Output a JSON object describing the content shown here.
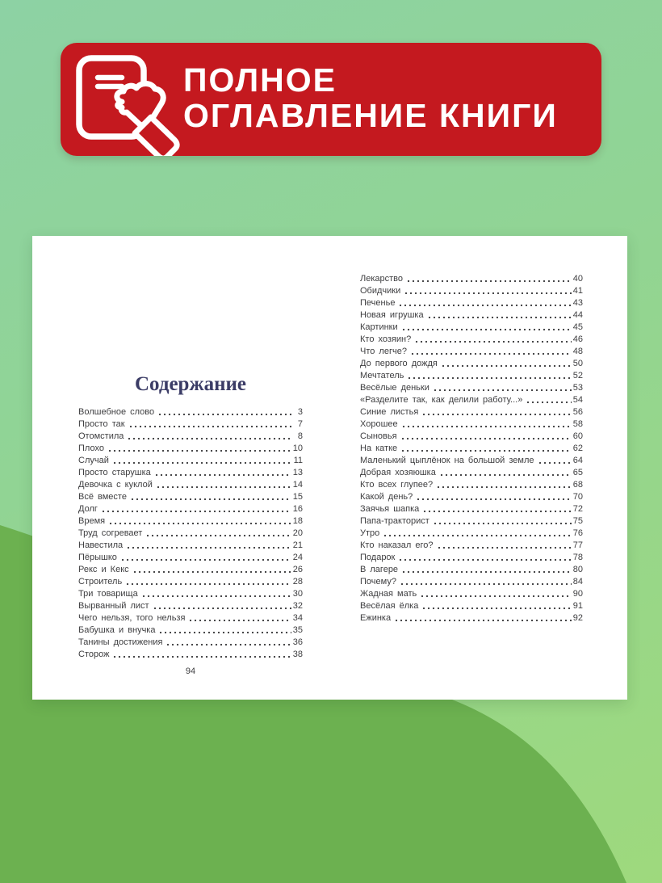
{
  "banner": {
    "line1": "ПОЛНОЕ",
    "line2": "ОГЛАВЛЕНИЕ КНИГИ",
    "background_color": "#c4191f",
    "text_color": "#ffffff",
    "icon": "book-with-writing-hand"
  },
  "book_spread": {
    "title": "Содержание",
    "title_color": "#3b3c66",
    "page_number": "94",
    "toc_left": [
      {
        "title": "Волшебное слово",
        "page": "3"
      },
      {
        "title": "Просто так",
        "page": "7"
      },
      {
        "title": "Отомстила",
        "page": "8"
      },
      {
        "title": "Плохо",
        "page": "10"
      },
      {
        "title": "Случай",
        "page": "11"
      },
      {
        "title": "Просто старушка",
        "page": "13"
      },
      {
        "title": "Девочка с куклой",
        "page": "14"
      },
      {
        "title": "Всё вместе",
        "page": "15"
      },
      {
        "title": "Долг",
        "page": "16"
      },
      {
        "title": "Время",
        "page": "18"
      },
      {
        "title": "Труд согревает",
        "page": "20"
      },
      {
        "title": "Навестила",
        "page": "21"
      },
      {
        "title": "Пёрышко",
        "page": "24"
      },
      {
        "title": "Рекс и Кекс",
        "page": "26"
      },
      {
        "title": "Строитель",
        "page": "28"
      },
      {
        "title": "Три товарища",
        "page": "30"
      },
      {
        "title": "Вырванный лист",
        "page": "32"
      },
      {
        "title": "Чего нельзя, того нельзя",
        "page": "34"
      },
      {
        "title": "Бабушка и внучка",
        "page": "35"
      },
      {
        "title": "Танины достижения",
        "page": "36"
      },
      {
        "title": "Сторож",
        "page": "38"
      }
    ],
    "toc_right": [
      {
        "title": "Лекарство",
        "page": "40"
      },
      {
        "title": "Обидчики",
        "page": "41"
      },
      {
        "title": "Печенье",
        "page": "43"
      },
      {
        "title": "Новая игрушка",
        "page": "44"
      },
      {
        "title": "Картинки",
        "page": "45"
      },
      {
        "title": "Кто хозяин?",
        "page": "46"
      },
      {
        "title": "Что легче?",
        "page": "48"
      },
      {
        "title": "До первого дождя",
        "page": "50"
      },
      {
        "title": "Мечтатель",
        "page": "52"
      },
      {
        "title": "Весёлые деньки",
        "page": "53"
      },
      {
        "title": "«Разделите так, как делили работу...»",
        "page": "54"
      },
      {
        "title": "Синие листья",
        "page": "56"
      },
      {
        "title": "Хорошее",
        "page": "58"
      },
      {
        "title": "Сыновья",
        "page": "60"
      },
      {
        "title": "На катке",
        "page": "62"
      },
      {
        "title": "Маленький цыплёнок на большой земле",
        "page": "64"
      },
      {
        "title": "Добрая хозяюшка",
        "page": "65"
      },
      {
        "title": "Кто всех глупее?",
        "page": "68"
      },
      {
        "title": "Какой день?",
        "page": "70"
      },
      {
        "title": "Заячья шапка",
        "page": "72"
      },
      {
        "title": "Папа-тракторист",
        "page": "75"
      },
      {
        "title": "Утро",
        "page": "76"
      },
      {
        "title": "Кто наказал его?",
        "page": "77"
      },
      {
        "title": "Подарок",
        "page": "78"
      },
      {
        "title": "В лагере",
        "page": "80"
      },
      {
        "title": "Почему?",
        "page": "84"
      },
      {
        "title": "Жадная мать",
        "page": "90"
      },
      {
        "title": "Весёлая ёлка",
        "page": "91"
      },
      {
        "title": "Ежинка",
        "page": "92"
      }
    ]
  },
  "background": {
    "gradient_top": "#8dd2a4",
    "gradient_bottom": "#9ed97d",
    "wave_color": "#6cb150"
  }
}
